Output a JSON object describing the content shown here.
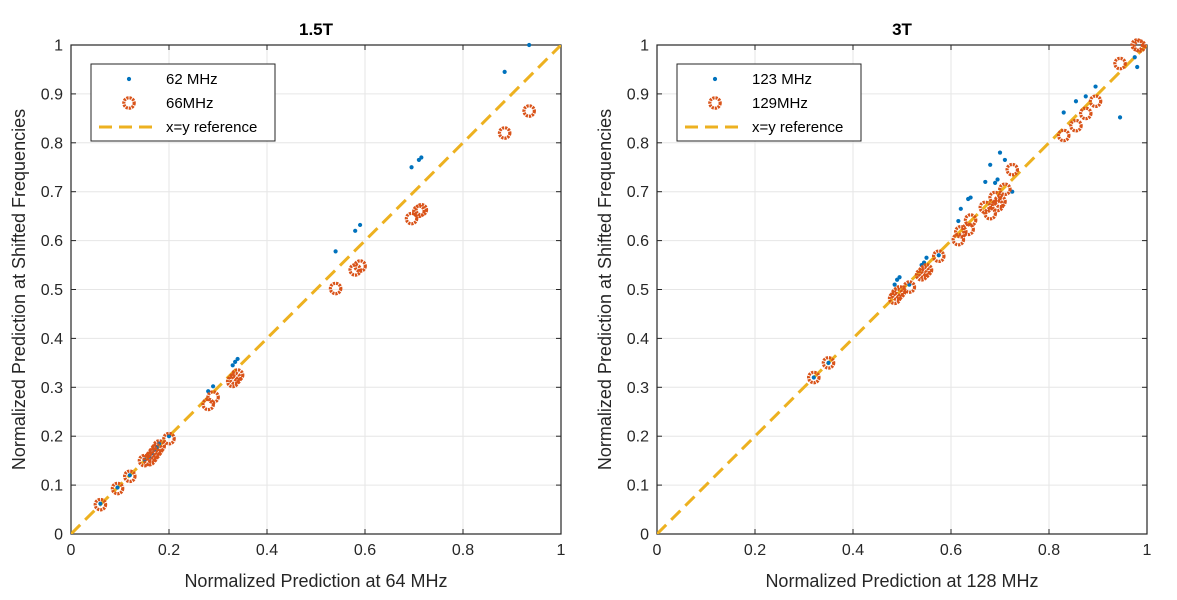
{
  "colors": {
    "series_a": "#0072BD",
    "series_b": "#D95319",
    "reference": "#EDB120",
    "grid": "#e6e6e6",
    "axis": "#262626"
  },
  "chart_data": [
    {
      "type": "scatter",
      "title": "1.5T",
      "xlabel": "Normalized Prediction at 64 MHz",
      "ylabel": "Normalized Prediction at Shifted Frequencies",
      "xlim": [
        0,
        1
      ],
      "ylim": [
        0,
        1
      ],
      "xticks": [
        "0",
        "0.2",
        "0.4",
        "0.6",
        "0.8",
        "1"
      ],
      "yticks": [
        "0",
        "0.1",
        "0.2",
        "0.3",
        "0.4",
        "0.5",
        "0.6",
        "0.7",
        "0.8",
        "0.9",
        "1"
      ],
      "grid": true,
      "legend_position": "top-left",
      "series": [
        {
          "name": "62 MHz",
          "marker": "dot",
          "points": [
            [
              0.06,
              0.062
            ],
            [
              0.095,
              0.095
            ],
            [
              0.12,
              0.12
            ],
            [
              0.15,
              0.152
            ],
            [
              0.16,
              0.158
            ],
            [
              0.165,
              0.165
            ],
            [
              0.17,
              0.172
            ],
            [
              0.175,
              0.178
            ],
            [
              0.18,
              0.185
            ],
            [
              0.2,
              0.2
            ],
            [
              0.28,
              0.292
            ],
            [
              0.29,
              0.302
            ],
            [
              0.33,
              0.345
            ],
            [
              0.335,
              0.352
            ],
            [
              0.34,
              0.358
            ],
            [
              0.54,
              0.578
            ],
            [
              0.58,
              0.62
            ],
            [
              0.59,
              0.632
            ],
            [
              0.695,
              0.75
            ],
            [
              0.71,
              0.765
            ],
            [
              0.715,
              0.77
            ],
            [
              0.885,
              0.945
            ],
            [
              0.935,
              1.0
            ]
          ]
        },
        {
          "name": "66MHz",
          "marker": "circle",
          "points": [
            [
              0.06,
              0.06
            ],
            [
              0.095,
              0.093
            ],
            [
              0.12,
              0.118
            ],
            [
              0.15,
              0.15
            ],
            [
              0.16,
              0.152
            ],
            [
              0.165,
              0.158
            ],
            [
              0.17,
              0.165
            ],
            [
              0.175,
              0.172
            ],
            [
              0.18,
              0.18
            ],
            [
              0.2,
              0.195
            ],
            [
              0.28,
              0.265
            ],
            [
              0.29,
              0.28
            ],
            [
              0.33,
              0.312
            ],
            [
              0.335,
              0.318
            ],
            [
              0.34,
              0.325
            ],
            [
              0.54,
              0.502
            ],
            [
              0.58,
              0.54
            ],
            [
              0.59,
              0.548
            ],
            [
              0.695,
              0.645
            ],
            [
              0.71,
              0.66
            ],
            [
              0.715,
              0.663
            ],
            [
              0.885,
              0.82
            ],
            [
              0.935,
              0.865
            ]
          ]
        },
        {
          "name": "x=y reference",
          "marker": "dashed-line",
          "points": [
            [
              0,
              0
            ],
            [
              1,
              1
            ]
          ]
        }
      ]
    },
    {
      "type": "scatter",
      "title": "3T",
      "xlabel": "Normalized Prediction at 128 MHz",
      "ylabel": "Normalized Prediction at Shifted Frequencies",
      "xlim": [
        0,
        1
      ],
      "ylim": [
        0,
        1
      ],
      "xticks": [
        "0",
        "0.2",
        "0.4",
        "0.6",
        "0.8",
        "1"
      ],
      "yticks": [
        "0",
        "0.1",
        "0.2",
        "0.3",
        "0.4",
        "0.5",
        "0.6",
        "0.7",
        "0.8",
        "0.9",
        "1"
      ],
      "grid": true,
      "legend_position": "top-left",
      "series": [
        {
          "name": "123 MHz",
          "marker": "dot",
          "points": [
            [
              0.32,
              0.32
            ],
            [
              0.35,
              0.35
            ],
            [
              0.485,
              0.51
            ],
            [
              0.49,
              0.52
            ],
            [
              0.495,
              0.525
            ],
            [
              0.515,
              0.51
            ],
            [
              0.54,
              0.55
            ],
            [
              0.545,
              0.555
            ],
            [
              0.55,
              0.565
            ],
            [
              0.575,
              0.57
            ],
            [
              0.615,
              0.64
            ],
            [
              0.62,
              0.665
            ],
            [
              0.635,
              0.685
            ],
            [
              0.64,
              0.688
            ],
            [
              0.67,
              0.72
            ],
            [
              0.68,
              0.755
            ],
            [
              0.69,
              0.718
            ],
            [
              0.695,
              0.725
            ],
            [
              0.7,
              0.78
            ],
            [
              0.71,
              0.765
            ],
            [
              0.725,
              0.7
            ],
            [
              0.83,
              0.862
            ],
            [
              0.855,
              0.885
            ],
            [
              0.875,
              0.895
            ],
            [
              0.895,
              0.915
            ],
            [
              0.945,
              0.852
            ],
            [
              0.975,
              0.975
            ],
            [
              0.98,
              0.955
            ]
          ]
        },
        {
          "name": "129MHz",
          "marker": "circle",
          "points": [
            [
              0.32,
              0.32
            ],
            [
              0.35,
              0.35
            ],
            [
              0.485,
              0.482
            ],
            [
              0.49,
              0.49
            ],
            [
              0.495,
              0.495
            ],
            [
              0.515,
              0.505
            ],
            [
              0.54,
              0.53
            ],
            [
              0.545,
              0.535
            ],
            [
              0.55,
              0.54
            ],
            [
              0.575,
              0.568
            ],
            [
              0.615,
              0.602
            ],
            [
              0.62,
              0.618
            ],
            [
              0.635,
              0.623
            ],
            [
              0.64,
              0.642
            ],
            [
              0.67,
              0.668
            ],
            [
              0.68,
              0.655
            ],
            [
              0.69,
              0.688
            ],
            [
              0.695,
              0.672
            ],
            [
              0.7,
              0.68
            ],
            [
              0.71,
              0.705
            ],
            [
              0.725,
              0.745
            ],
            [
              0.83,
              0.815
            ],
            [
              0.855,
              0.835
            ],
            [
              0.875,
              0.86
            ],
            [
              0.895,
              0.885
            ],
            [
              0.945,
              0.962
            ],
            [
              0.98,
              1.0
            ],
            [
              0.985,
              0.998
            ]
          ]
        },
        {
          "name": "x=y reference",
          "marker": "dashed-line",
          "points": [
            [
              0,
              0
            ],
            [
              1,
              1
            ]
          ]
        }
      ]
    }
  ]
}
